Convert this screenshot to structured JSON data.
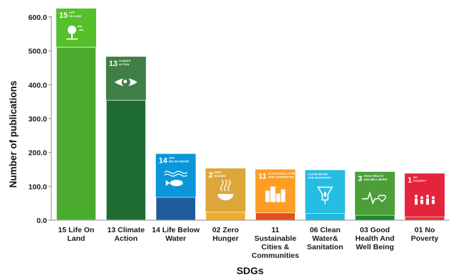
{
  "chart_data": {
    "type": "bar",
    "title": "",
    "xlabel": "SDGs",
    "ylabel": "Number of publications",
    "ylim": [
      0,
      600
    ],
    "yticks": [
      "0.0",
      "100.0",
      "200.0",
      "300.0",
      "400.0",
      "500.0",
      "600.0"
    ],
    "grid": false,
    "legend": "none",
    "categories": [
      "15 Life On Land",
      "13 Climate Action",
      "14 Life Below Water",
      "02 Zero Hunger",
      "11 Sustainable Cities & Communities",
      "06 Clean Water& Sanitation",
      "03 Good Health And Well Being",
      "01 No Poverty"
    ],
    "category_lines": [
      [
        "15 Life On",
        "Land"
      ],
      [
        "13 Climate",
        "Action"
      ],
      [
        "14 Life Below",
        "Water"
      ],
      [
        "02 Zero",
        "Hunger"
      ],
      [
        "11",
        "Sustainable",
        "Cities &",
        "Communities"
      ],
      [
        "06 Clean",
        "Water&",
        "Sanitation"
      ],
      [
        "03 Good",
        "Health And",
        "Well Being"
      ],
      [
        "01 No",
        "Poverty"
      ]
    ],
    "values": [
      512,
      355,
      68,
      25,
      22,
      20,
      15,
      10
    ],
    "sdg_icons": [
      {
        "number": "15",
        "label": [
          "LIFE",
          "ON LAND"
        ],
        "color": "#56c02b",
        "icon": "tree-icon"
      },
      {
        "number": "13",
        "label": [
          "CLIMATE",
          "ACTION"
        ],
        "color": "#3f7e44",
        "icon": "eye-globe-icon"
      },
      {
        "number": "14",
        "label": [
          "LIFE",
          "BELOW WATER"
        ],
        "color": "#0a97d9",
        "icon": "fish-icon"
      },
      {
        "number": "2",
        "label": [
          "ZERO",
          "HUNGER"
        ],
        "color": "#dda63a",
        "icon": "bowl-icon"
      },
      {
        "number": "11",
        "label": [
          "SUSTAINABLE CITIES",
          "AND COMMUNITIES"
        ],
        "color": "#fd9d24",
        "icon": "city-icon"
      },
      {
        "number": "",
        "label": [
          "CLEAN WATER",
          "AND SANITATION"
        ],
        "color": "#26bde2",
        "icon": "water-drop-icon"
      },
      {
        "number": "3",
        "label": [
          "GOOD HEALTH",
          "AND WELL-BEING"
        ],
        "color": "#4c9f38",
        "icon": "heartbeat-icon"
      },
      {
        "number": "1",
        "label": [
          "NO",
          "POVERTY"
        ],
        "color": "#e5243b",
        "icon": "family-icon"
      }
    ],
    "bar_colors": [
      "#4bab2f",
      "#1f6b34",
      "#1d5d9c",
      "#f0ad2d",
      "#e0511f",
      "#21b6dd",
      "#1f8a2e",
      "#d9302f"
    ]
  }
}
